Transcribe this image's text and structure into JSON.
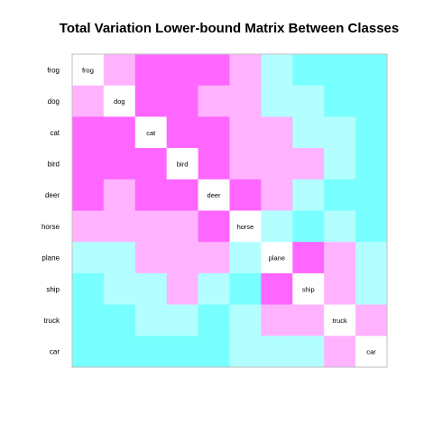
{
  "chart_data": {
    "type": "heatmap",
    "title": "Total Variation Lower-bound Matrix Between Classes",
    "rows": [
      "frog",
      "dog",
      "cat",
      "bird",
      "deer",
      "horse",
      "plane",
      "ship",
      "truck",
      "car"
    ],
    "cols": [
      "frog",
      "dog",
      "cat",
      "bird",
      "deer",
      "horse",
      "plane",
      "ship",
      "truck",
      "car"
    ],
    "levels": {
      "0": "#FFFFFF",
      "1": "#FF66FF",
      "2": "#FFB3FF",
      "3": "#B3FFFF",
      "4": "#78FFFF"
    },
    "matrix": [
      [
        0,
        2,
        1,
        1,
        1,
        2,
        3,
        4,
        4,
        4
      ],
      [
        2,
        0,
        1,
        1,
        2,
        2,
        3,
        3,
        4,
        4
      ],
      [
        1,
        1,
        0,
        1,
        1,
        2,
        2,
        3,
        3,
        4
      ],
      [
        1,
        1,
        1,
        0,
        1,
        2,
        2,
        2,
        3,
        4
      ],
      [
        1,
        2,
        1,
        1,
        0,
        1,
        2,
        3,
        4,
        4
      ],
      [
        2,
        2,
        2,
        2,
        1,
        0,
        3,
        4,
        3,
        4
      ],
      [
        3,
        3,
        2,
        2,
        2,
        3,
        0,
        1,
        2,
        3
      ],
      [
        4,
        3,
        3,
        2,
        3,
        4,
        1,
        0,
        2,
        3
      ],
      [
        4,
        4,
        3,
        3,
        4,
        3,
        2,
        2,
        0,
        2
      ],
      [
        4,
        4,
        4,
        4,
        4,
        3,
        3,
        3,
        2,
        0
      ]
    ],
    "grid": false,
    "legend": "none"
  }
}
